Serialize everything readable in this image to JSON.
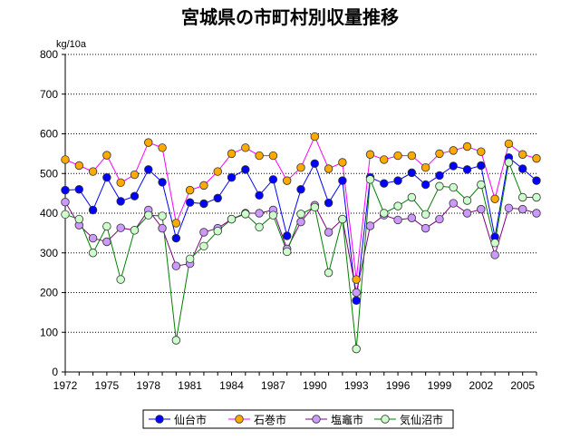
{
  "chart_data": {
    "type": "line",
    "title": "宮城県の市町村別収量推移",
    "ylabel": "kg/10a",
    "xlabel": "",
    "ylim": [
      0,
      800
    ],
    "yticks": [
      0,
      100,
      200,
      300,
      400,
      500,
      600,
      700,
      800
    ],
    "xlim": [
      1972,
      2006
    ],
    "xticks": [
      1972,
      1975,
      1978,
      1981,
      1984,
      1987,
      1990,
      1993,
      1996,
      1999,
      2002,
      2005
    ],
    "grid": "horizontal-dotted",
    "legend": "bottom",
    "x": [
      1972,
      1973,
      1974,
      1975,
      1976,
      1977,
      1978,
      1979,
      1980,
      1981,
      1982,
      1983,
      1984,
      1985,
      1986,
      1987,
      1988,
      1989,
      1990,
      1991,
      1992,
      1993,
      1994,
      1995,
      1996,
      1997,
      1998,
      1999,
      2000,
      2001,
      2002,
      2003,
      2004,
      2005,
      2006
    ],
    "series": [
      {
        "name": "仙台市",
        "color": "#0000ff",
        "marker_fill": "#0000ff",
        "values": [
          458,
          460,
          408,
          490,
          430,
          443,
          510,
          478,
          337,
          427,
          424,
          438,
          490,
          510,
          445,
          485,
          343,
          460,
          525,
          426,
          482,
          180,
          490,
          475,
          482,
          502,
          472,
          495,
          519,
          510,
          520,
          340,
          540,
          512,
          482
        ]
      },
      {
        "name": "石巻市",
        "color": "#ff00ff",
        "marker_fill": "#ffaa00",
        "values": [
          535,
          520,
          505,
          546,
          477,
          497,
          578,
          565,
          375,
          458,
          470,
          505,
          550,
          565,
          545,
          545,
          482,
          515,
          593,
          512,
          528,
          233,
          548,
          535,
          545,
          545,
          515,
          550,
          558,
          568,
          555,
          436,
          575,
          548,
          538
        ]
      },
      {
        "name": "塩竈市",
        "color": "#800080",
        "marker_fill": "#cc99ff",
        "values": [
          428,
          370,
          337,
          328,
          363,
          357,
          408,
          362,
          267,
          273,
          352,
          362,
          385,
          400,
          400,
          408,
          310,
          378,
          420,
          352,
          385,
          200,
          368,
          395,
          383,
          388,
          362,
          385,
          425,
          400,
          410,
          295,
          413,
          410,
          400
        ]
      },
      {
        "name": "気仙沼市",
        "color": "#008000",
        "marker_fill": "#ccffcc",
        "values": [
          397,
          385,
          300,
          367,
          233,
          357,
          395,
          393,
          80,
          285,
          317,
          355,
          385,
          398,
          365,
          395,
          303,
          398,
          415,
          250,
          385,
          58,
          485,
          400,
          418,
          440,
          397,
          468,
          465,
          432,
          472,
          325,
          528,
          440,
          440
        ]
      }
    ]
  }
}
